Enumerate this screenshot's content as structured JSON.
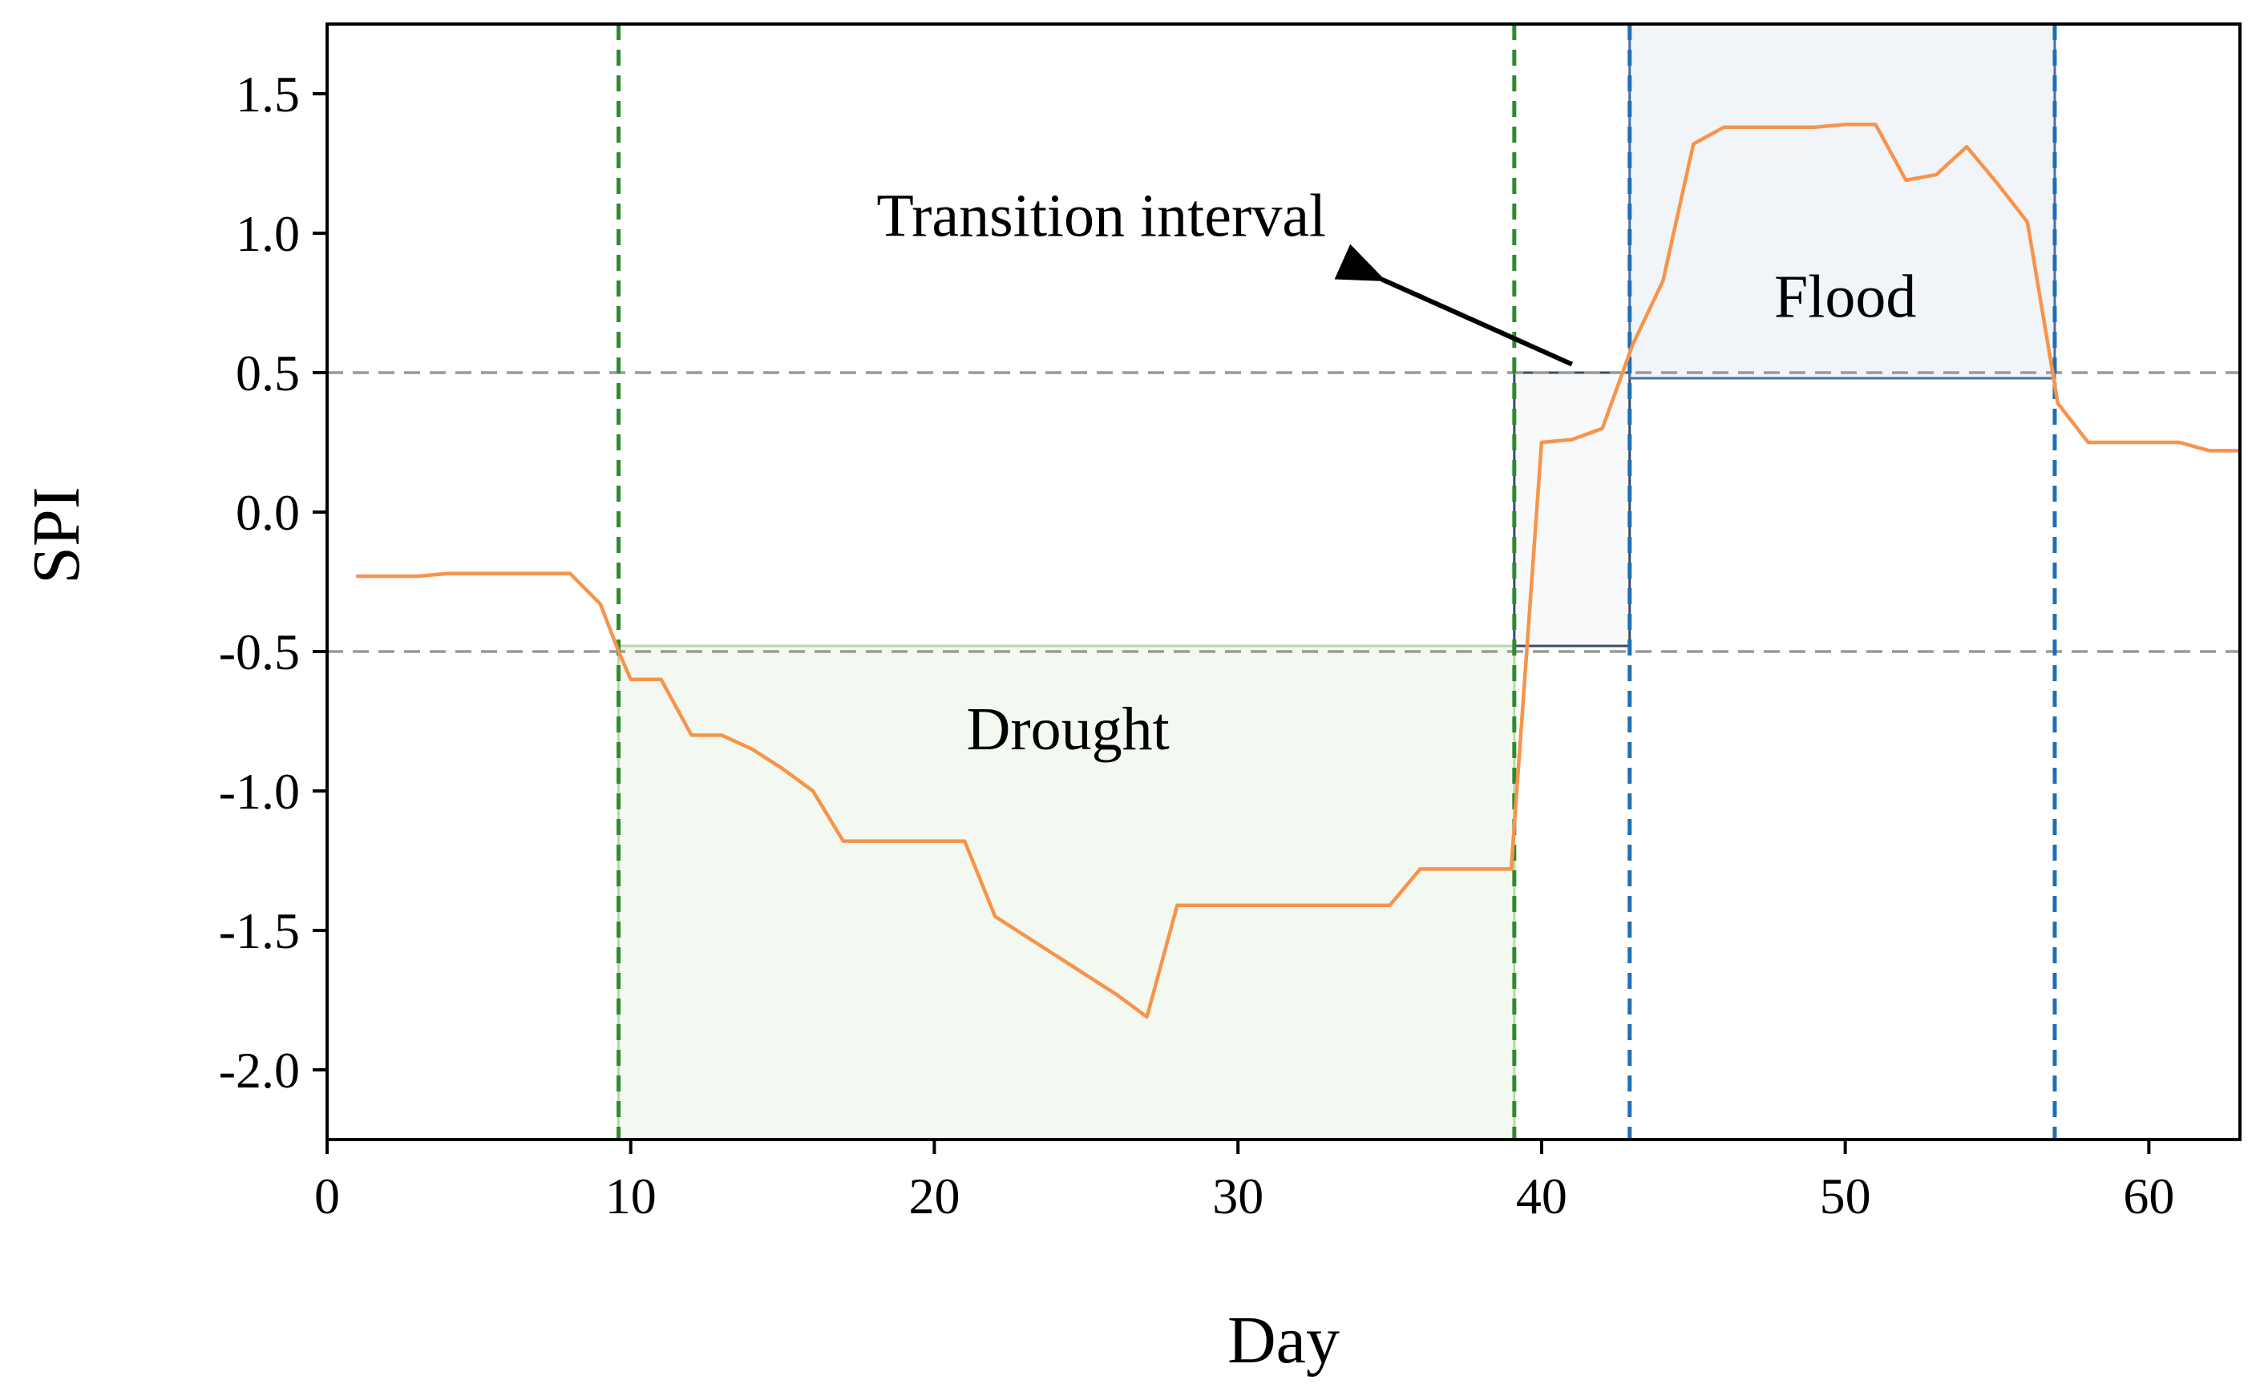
{
  "chart_data": {
    "type": "line",
    "title": "",
    "xlabel": "Day",
    "ylabel": "SPI",
    "xlim": [
      0,
      63
    ],
    "ylim": [
      -2.25,
      1.75
    ],
    "xticks": [
      0,
      10,
      20,
      30,
      40,
      50,
      60
    ],
    "xtick_labels": [
      "0",
      "10",
      "20",
      "30",
      "40",
      "50",
      "60"
    ],
    "yticks": [
      1.5,
      1.0,
      0.5,
      0.0,
      -0.5,
      -1.0,
      -1.5,
      -2.0
    ],
    "ytick_labels": [
      "1.5",
      "1.0",
      "0.5",
      "0.0",
      "-0.5",
      "-1.0",
      "-1.5",
      "-2.0"
    ],
    "grid": false,
    "series": [
      {
        "name": "SPI",
        "color": "#f7944a",
        "x": [
          1,
          2,
          3,
          4,
          5,
          6,
          7,
          8,
          9,
          9.6,
          10,
          11,
          12,
          13,
          14,
          15,
          16,
          17,
          18,
          19,
          20,
          21,
          22,
          23,
          24,
          25,
          26,
          27,
          28,
          29,
          30,
          31,
          32,
          33,
          34,
          35,
          36,
          37,
          38,
          39,
          40,
          41,
          42,
          43,
          44,
          45,
          46,
          47,
          48,
          49,
          50,
          51,
          52,
          53,
          54,
          55,
          56,
          57,
          58,
          59,
          60,
          61,
          62,
          63
        ],
        "values": [
          -0.23,
          -0.23,
          -0.23,
          -0.22,
          -0.22,
          -0.22,
          -0.22,
          -0.22,
          -0.33,
          -0.5,
          -0.6,
          -0.6,
          -0.8,
          -0.8,
          -0.85,
          -0.92,
          -1.0,
          -1.18,
          -1.18,
          -1.18,
          -1.18,
          -1.18,
          -1.45,
          -1.52,
          -1.59,
          -1.66,
          -1.73,
          -1.81,
          -1.41,
          -1.41,
          -1.41,
          -1.41,
          -1.41,
          -1.41,
          -1.41,
          -1.41,
          -1.28,
          -1.28,
          -1.28,
          -1.28,
          0.25,
          0.26,
          0.3,
          0.6,
          0.83,
          1.32,
          1.38,
          1.38,
          1.38,
          1.38,
          1.39,
          1.39,
          1.19,
          1.21,
          1.31,
          1.18,
          1.04,
          0.39,
          0.25,
          0.25,
          0.25,
          0.25,
          0.22,
          0.22
        ]
      }
    ],
    "threshold_lines": [
      {
        "y": 0.5,
        "color": "#999999",
        "style": "dashed"
      },
      {
        "y": -0.5,
        "color": "#999999",
        "style": "dashed"
      }
    ],
    "vertical_lines": [
      {
        "x": 9.6,
        "color": "#2e8b2e",
        "style": "dashed"
      },
      {
        "x": 39.1,
        "color": "#2e8b2e",
        "style": "dashed"
      },
      {
        "x": 42.9,
        "color": "#1f6fb4",
        "style": "dashed"
      },
      {
        "x": 56.9,
        "color": "#1f6fb4",
        "style": "dashed"
      }
    ],
    "regions": [
      {
        "name": "drought",
        "x": [
          9.6,
          39.1
        ],
        "y": [
          -2.25,
          -0.48
        ],
        "fill": "#f3f8f1",
        "stroke": "#b5d9a5"
      },
      {
        "name": "transition",
        "x": [
          39.1,
          42.9
        ],
        "y": [
          -0.48,
          0.5
        ],
        "fill": "#f8f9fa",
        "stroke": "#3a4a6a"
      },
      {
        "name": "flood",
        "x": [
          42.9,
          56.9
        ],
        "y": [
          0.48,
          1.75
        ],
        "fill": "#f1f4f9",
        "stroke": "#4a6fa0"
      }
    ],
    "annotations": [
      {
        "id": "drought",
        "text": "Drought",
        "x": 24.4,
        "y": -0.85
      },
      {
        "id": "flood",
        "text": "Flood",
        "x": 50.0,
        "y": 0.7
      },
      {
        "id": "transition",
        "text": "Transition interval",
        "x": 25.5,
        "y": 0.99,
        "arrow_from": [
          41.0,
          0.53
        ],
        "arrow_to": [
          34.0,
          0.8
        ]
      }
    ]
  }
}
